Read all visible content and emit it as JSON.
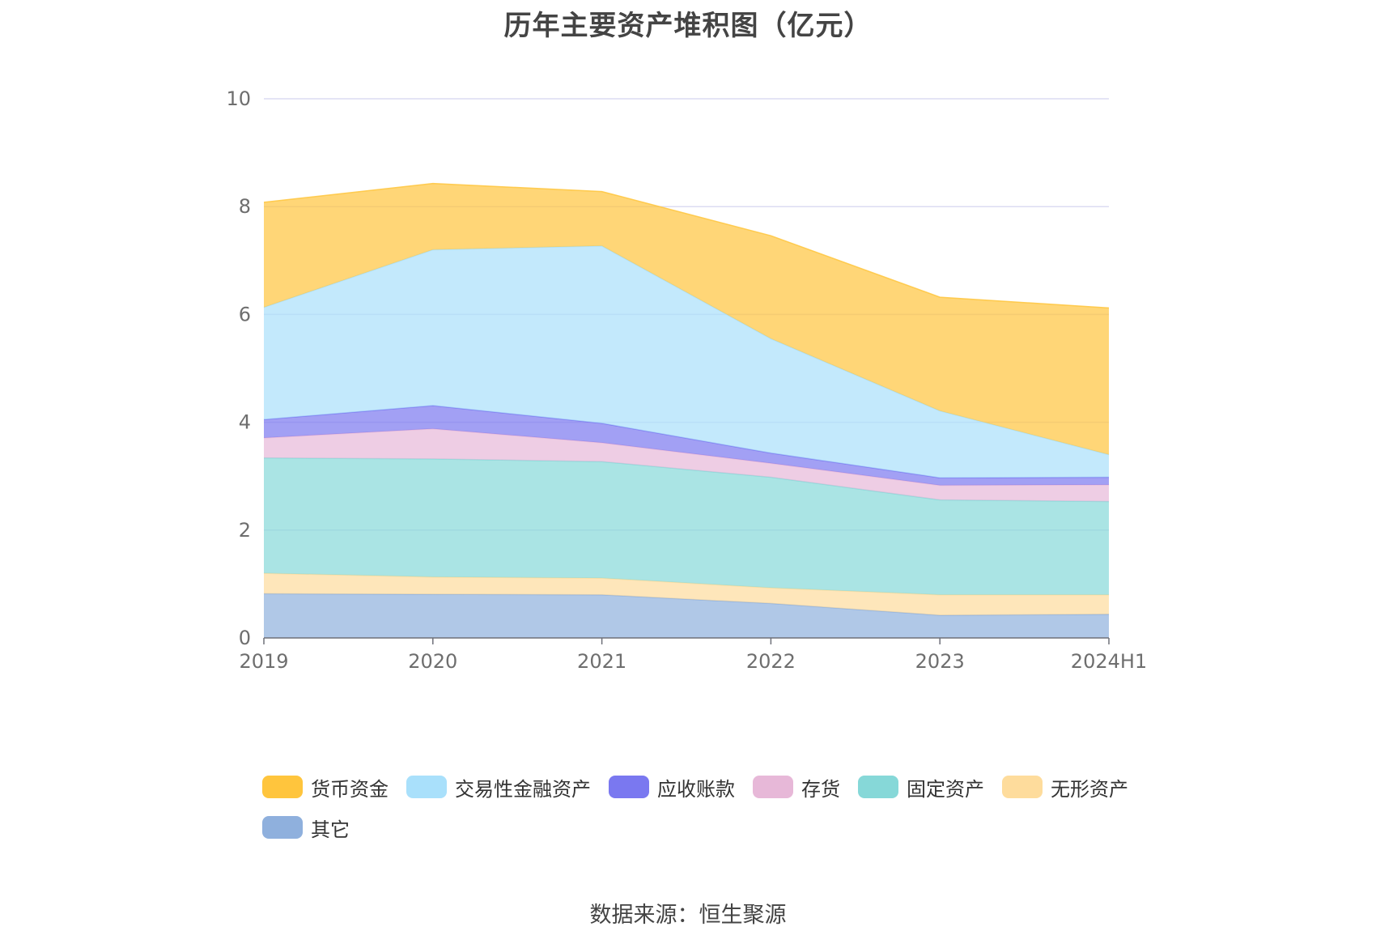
{
  "chart_data": {
    "type": "area",
    "stacked": true,
    "title": "历年主要资产堆积图（亿元）",
    "categories": [
      "2019",
      "2020",
      "2021",
      "2022",
      "2023",
      "2024H1"
    ],
    "ylim": [
      0,
      10
    ],
    "yticks": [
      "0",
      "2",
      "4",
      "6",
      "8",
      "10"
    ],
    "grid": true,
    "legend_position": "bottom",
    "series": [
      {
        "name": "其它",
        "color": "#8fb0dd",
        "values": [
          0.82,
          0.81,
          0.8,
          0.64,
          0.42,
          0.44
        ]
      },
      {
        "name": "无形资产",
        "color": "#fedc9c",
        "values": [
          0.38,
          0.32,
          0.31,
          0.29,
          0.38,
          0.36
        ]
      },
      {
        "name": "固定资产",
        "color": "#86d8d8",
        "values": [
          2.14,
          2.19,
          2.16,
          2.05,
          1.76,
          1.73
        ]
      },
      {
        "name": "存货",
        "color": "#e7b8d8",
        "values": [
          0.37,
          0.56,
          0.35,
          0.26,
          0.27,
          0.31
        ]
      },
      {
        "name": "应收账款",
        "color": "#7a78f0",
        "values": [
          0.34,
          0.43,
          0.36,
          0.19,
          0.14,
          0.14
        ]
      },
      {
        "name": "交易性金融资产",
        "color": "#a9e0fb",
        "values": [
          2.08,
          2.89,
          3.29,
          2.12,
          1.24,
          0.42
        ]
      },
      {
        "name": "货币资金",
        "color": "#ffc53d",
        "values": [
          1.95,
          1.23,
          1.01,
          1.91,
          2.11,
          2.72
        ]
      }
    ]
  },
  "legend_order": [
    "货币资金",
    "交易性金融资产",
    "应收账款",
    "存货",
    "固定资产",
    "无形资产",
    "其它"
  ],
  "source_text": "数据来源：恒生聚源"
}
